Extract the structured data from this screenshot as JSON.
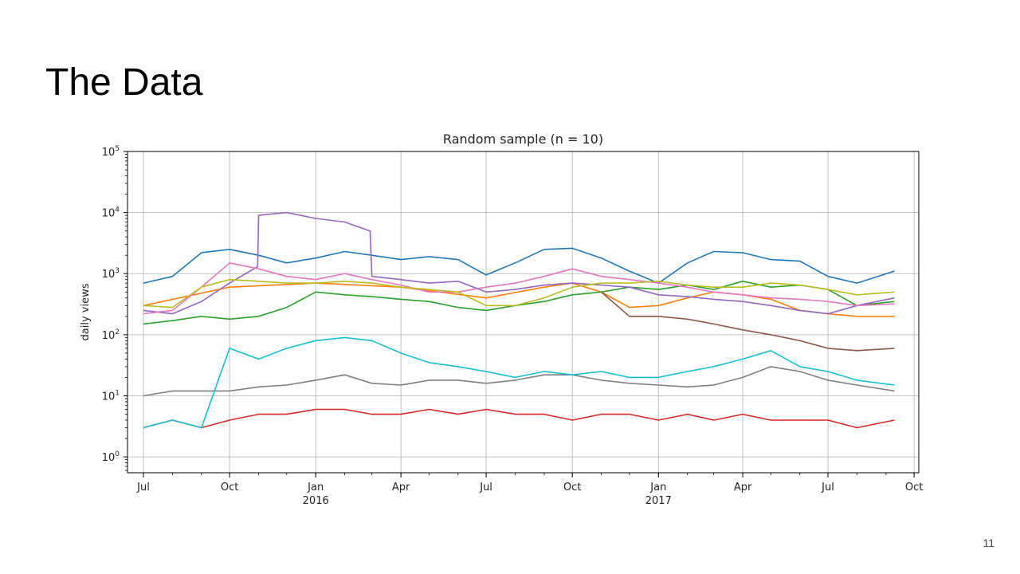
{
  "slide": {
    "title": "The Data",
    "page_number": "11"
  },
  "chart_data": {
    "type": "line",
    "title": "Random sample (n = 10)",
    "xlabel": "",
    "ylabel": "daily views",
    "yscale": "log",
    "ylim": [
      0.55,
      100000
    ],
    "xlim": [
      "2015-06-14",
      "2017-10-06"
    ],
    "grid": true,
    "legend": "none",
    "y_ticks": [
      {
        "value": 1,
        "label": "10",
        "exp": "0"
      },
      {
        "value": 10,
        "label": "10",
        "exp": "1"
      },
      {
        "value": 100,
        "label": "10",
        "exp": "2"
      },
      {
        "value": 1000,
        "label": "10",
        "exp": "3"
      },
      {
        "value": 10000,
        "label": "10",
        "exp": "4"
      },
      {
        "value": 100000,
        "label": "10",
        "exp": "5"
      }
    ],
    "x_ticks": [
      {
        "date": "2015-07-01",
        "label": "Jul",
        "year": ""
      },
      {
        "date": "2015-10-01",
        "label": "Oct",
        "year": ""
      },
      {
        "date": "2016-01-01",
        "label": "Jan",
        "year": "2016"
      },
      {
        "date": "2016-04-01",
        "label": "Apr",
        "year": ""
      },
      {
        "date": "2016-07-01",
        "label": "Jul",
        "year": ""
      },
      {
        "date": "2016-10-01",
        "label": "Oct",
        "year": ""
      },
      {
        "date": "2017-01-01",
        "label": "Jan",
        "year": "2017"
      },
      {
        "date": "2017-04-01",
        "label": "Apr",
        "year": ""
      },
      {
        "date": "2017-07-01",
        "label": "Jul",
        "year": ""
      },
      {
        "date": "2017-10-01",
        "label": "Oct",
        "year": ""
      }
    ],
    "series": [
      {
        "color": "#1f77b4",
        "x": [
          "2015-07-01",
          "2015-08-01",
          "2015-09-01",
          "2015-10-01",
          "2015-11-01",
          "2015-12-01",
          "2016-01-01",
          "2016-02-01",
          "2016-03-01",
          "2016-04-01",
          "2016-05-01",
          "2016-06-01",
          "2016-07-01",
          "2016-08-01",
          "2016-09-01",
          "2016-10-01",
          "2016-11-01",
          "2016-12-01",
          "2017-01-01",
          "2017-02-01",
          "2017-03-01",
          "2017-04-01",
          "2017-05-01",
          "2017-06-01",
          "2017-07-01",
          "2017-08-01",
          "2017-09-10"
        ],
        "y": [
          700,
          900,
          2200,
          2500,
          2000,
          1500,
          1800,
          2300,
          2000,
          1700,
          1900,
          1700,
          950,
          1500,
          2500,
          2600,
          1800,
          1100,
          700,
          1500,
          2300,
          2200,
          1700,
          1600,
          900,
          700,
          1100
        ]
      },
      {
        "color": "#ff7f0e",
        "x": [
          "2015-07-01",
          "2015-10-01",
          "2016-01-01",
          "2016-04-01",
          "2016-07-01",
          "2016-09-01",
          "2016-10-01",
          "2016-11-01",
          "2016-12-01",
          "2017-01-01",
          "2017-02-01",
          "2017-03-01",
          "2017-04-01",
          "2017-05-01",
          "2017-06-01",
          "2017-07-01",
          "2017-08-01",
          "2017-09-10"
        ],
        "y": [
          300,
          600,
          700,
          600,
          400,
          600,
          700,
          500,
          280,
          300,
          400,
          500,
          450,
          380,
          250,
          220,
          200,
          200
        ]
      },
      {
        "color": "#2ca02c",
        "x": [
          "2015-07-01",
          "2015-08-01",
          "2015-09-01",
          "2015-10-01",
          "2015-11-01",
          "2015-12-01",
          "2016-01-01",
          "2016-02-01",
          "2016-03-01",
          "2016-04-01",
          "2016-05-01",
          "2016-06-01",
          "2016-07-01",
          "2016-08-01",
          "2016-09-01",
          "2016-10-01",
          "2016-11-01",
          "2016-12-01",
          "2017-01-01",
          "2017-02-01",
          "2017-03-01",
          "2017-04-01",
          "2017-05-01",
          "2017-06-01",
          "2017-07-01",
          "2017-08-01",
          "2017-09-10"
        ],
        "y": [
          150,
          170,
          200,
          180,
          200,
          280,
          500,
          450,
          420,
          380,
          350,
          280,
          250,
          300,
          350,
          450,
          500,
          600,
          550,
          650,
          550,
          750,
          600,
          650,
          550,
          300,
          350
        ]
      },
      {
        "color": "#d62728",
        "x": [
          "2015-07-01",
          "2015-08-01",
          "2015-09-01",
          "2015-10-01",
          "2015-11-01",
          "2015-12-01",
          "2016-01-01",
          "2016-02-01",
          "2016-03-01",
          "2016-04-01",
          "2016-05-01",
          "2016-06-01",
          "2016-07-01",
          "2016-08-01",
          "2016-09-01",
          "2016-10-01",
          "2016-11-01",
          "2016-12-01",
          "2017-01-01",
          "2017-02-01",
          "2017-03-01",
          "2017-04-01",
          "2017-05-01",
          "2017-06-01",
          "2017-07-01",
          "2017-08-01",
          "2017-09-10"
        ],
        "y": [
          3,
          4,
          3,
          4,
          5,
          5,
          6,
          6,
          5,
          5,
          6,
          5,
          6,
          5,
          5,
          4,
          5,
          5,
          4,
          5,
          4,
          5,
          4,
          4,
          4,
          3,
          4
        ]
      },
      {
        "color": "#9467bd",
        "x": [
          "2015-07-01",
          "2015-08-01",
          "2015-09-01",
          "2015-10-01",
          "2015-10-31",
          "2015-11-01",
          "2015-12-01",
          "2016-01-01",
          "2016-02-01",
          "2016-02-28",
          "2016-03-01",
          "2016-04-01",
          "2016-05-01",
          "2016-06-01",
          "2016-07-01",
          "2016-08-01",
          "2016-09-01",
          "2016-10-01",
          "2016-11-01",
          "2016-12-01",
          "2017-01-01",
          "2017-02-01",
          "2017-03-01",
          "2017-04-01",
          "2017-05-01",
          "2017-06-01",
          "2017-07-01",
          "2017-08-01",
          "2017-09-10"
        ],
        "y": [
          250,
          220,
          350,
          700,
          1300,
          9000,
          10000,
          8000,
          7000,
          5000,
          900,
          800,
          700,
          750,
          500,
          550,
          650,
          700,
          650,
          600,
          450,
          420,
          380,
          350,
          300,
          250,
          220,
          300,
          400
        ]
      },
      {
        "color": "#8c564b",
        "x": [
          "2016-11-01",
          "2016-12-01",
          "2017-01-01",
          "2017-02-01",
          "2017-03-01",
          "2017-04-01",
          "2017-05-01",
          "2017-06-01",
          "2017-07-01",
          "2017-08-01",
          "2017-09-10"
        ],
        "y": [
          500,
          200,
          200,
          180,
          150,
          120,
          100,
          80,
          60,
          55,
          60
        ]
      },
      {
        "color": "#e377c2",
        "x": [
          "2015-07-01",
          "2015-08-01",
          "2015-09-01",
          "2015-10-01",
          "2015-11-01",
          "2015-12-01",
          "2016-01-01",
          "2016-02-01",
          "2016-03-01",
          "2016-04-01",
          "2016-05-01",
          "2016-06-01",
          "2016-07-01",
          "2016-08-01",
          "2016-09-01",
          "2016-10-01",
          "2016-11-01",
          "2016-12-01",
          "2017-01-01",
          "2017-02-01",
          "2017-03-01",
          "2017-04-01",
          "2017-05-01",
          "2017-06-01",
          "2017-07-01",
          "2017-08-01",
          "2017-09-10"
        ],
        "y": [
          220,
          250,
          600,
          1500,
          1200,
          900,
          800,
          1000,
          800,
          650,
          500,
          500,
          600,
          700,
          900,
          1200,
          900,
          800,
          700,
          600,
          500,
          450,
          400,
          380,
          350,
          300,
          320
        ]
      },
      {
        "color": "#7f7f7f",
        "x": [
          "2015-07-01",
          "2015-08-01",
          "2015-09-01",
          "2015-10-01",
          "2015-11-01",
          "2015-12-01",
          "2016-01-01",
          "2016-02-01",
          "2016-03-01",
          "2016-04-01",
          "2016-05-01",
          "2016-06-01",
          "2016-07-01",
          "2016-08-01",
          "2016-09-01",
          "2016-10-01",
          "2016-11-01",
          "2016-12-01",
          "2017-01-01",
          "2017-02-01",
          "2017-03-01",
          "2017-04-01",
          "2017-05-01",
          "2017-06-01",
          "2017-07-01",
          "2017-08-01",
          "2017-09-10"
        ],
        "y": [
          10,
          12,
          12,
          12,
          14,
          15,
          18,
          22,
          16,
          15,
          18,
          18,
          16,
          18,
          22,
          22,
          18,
          16,
          15,
          14,
          15,
          20,
          30,
          25,
          18,
          15,
          12
        ]
      },
      {
        "color": "#bcbd22",
        "x": [
          "2015-07-01",
          "2015-08-01",
          "2015-09-01",
          "2015-10-01",
          "2015-11-01",
          "2015-12-01",
          "2016-01-01",
          "2016-02-01",
          "2016-03-01",
          "2016-04-01",
          "2016-05-01",
          "2016-06-01",
          "2016-07-01",
          "2016-08-01",
          "2016-09-01",
          "2016-10-01",
          "2016-11-01",
          "2016-12-01",
          "2017-01-01",
          "2017-02-01",
          "2017-03-01",
          "2017-04-01",
          "2017-05-01",
          "2017-06-01",
          "2017-07-01",
          "2017-08-01",
          "2017-09-10"
        ],
        "y": [
          300,
          280,
          600,
          800,
          750,
          700,
          700,
          750,
          700,
          600,
          550,
          500,
          300,
          300,
          400,
          600,
          700,
          700,
          750,
          650,
          600,
          600,
          700,
          650,
          550,
          450,
          500
        ]
      },
      {
        "color": "#17becf",
        "x": [
          "2015-07-01",
          "2015-08-01",
          "2015-09-01",
          "2015-10-01",
          "2015-11-01",
          "2015-12-01",
          "2016-01-01",
          "2016-02-01",
          "2016-03-01",
          "2016-04-01",
          "2016-05-01",
          "2016-06-01",
          "2016-07-01",
          "2016-08-01",
          "2016-09-01",
          "2016-10-01",
          "2016-11-01",
          "2016-12-01",
          "2017-01-01",
          "2017-02-01",
          "2017-03-01",
          "2017-04-01",
          "2017-05-01",
          "2017-06-01",
          "2017-07-01",
          "2017-08-01",
          "2017-09-10"
        ],
        "y": [
          3,
          4,
          3,
          60,
          40,
          60,
          80,
          90,
          80,
          50,
          35,
          30,
          25,
          20,
          25,
          22,
          25,
          20,
          20,
          25,
          30,
          40,
          55,
          30,
          25,
          18,
          15
        ]
      }
    ]
  }
}
